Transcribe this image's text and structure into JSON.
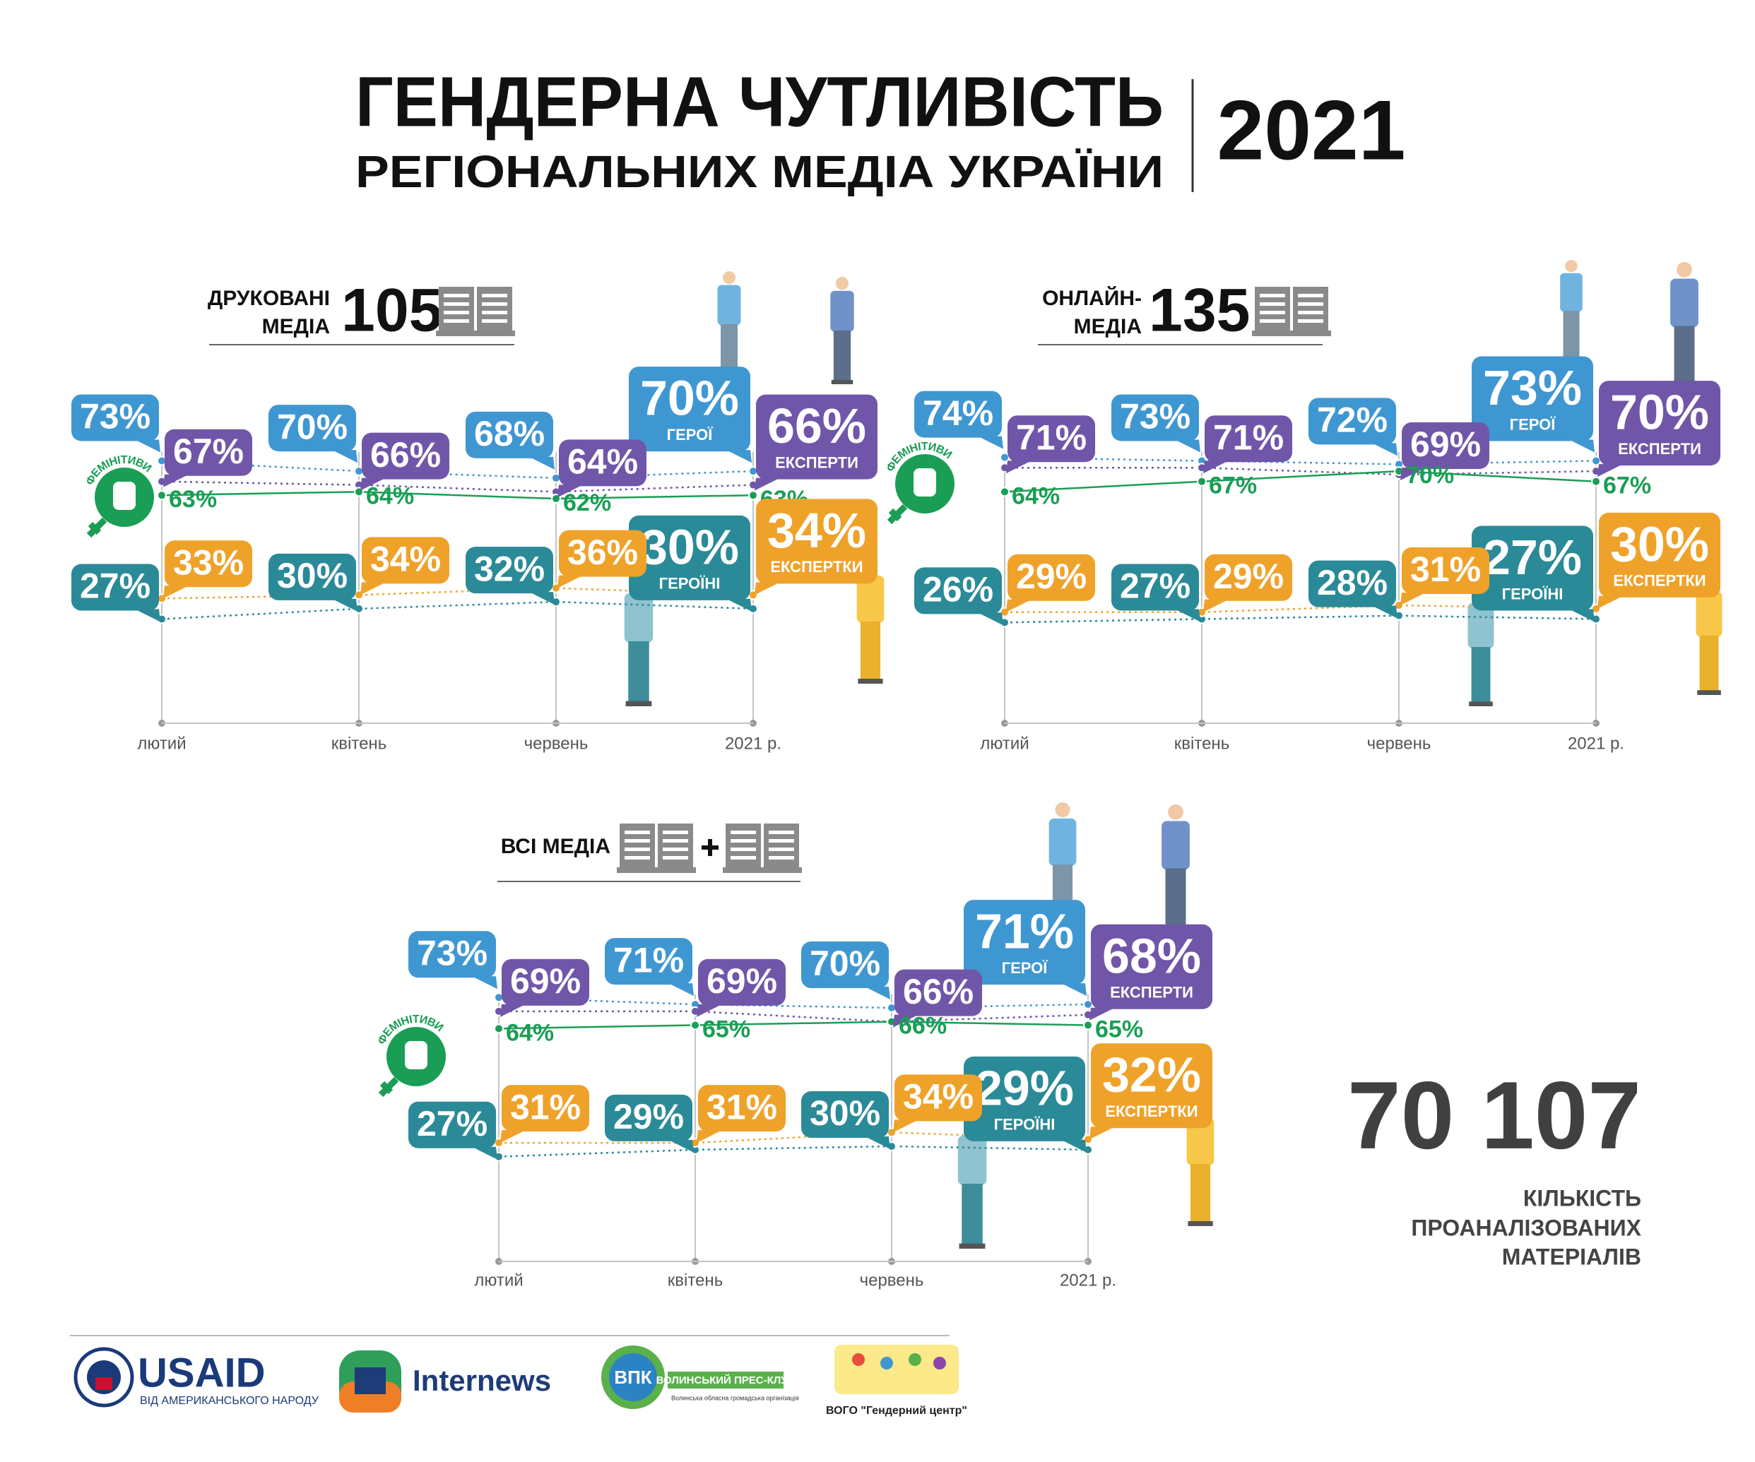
{
  "header": {
    "title_line1": "ГЕНДЕРНА ЧУТЛИВІСТЬ",
    "title_line2": "РЕГІОНАЛЬНИХ МЕДІА УКРАЇНИ",
    "year": "2021"
  },
  "chart_data": [
    {
      "type": "line",
      "title_lines": [
        "ДРУКОВАНІ",
        "МЕДІА"
      ],
      "count": 105,
      "categories": [
        "лютий",
        "квітень",
        "червень",
        "2021 р."
      ],
      "ylim": [
        0,
        100
      ],
      "series": [
        {
          "name": "ГЕРОЇ",
          "color": "#3f97d2",
          "values": [
            73,
            70,
            68,
            70
          ],
          "value_labels": [
            "73%",
            "70%",
            "68%",
            "70%"
          ]
        },
        {
          "name": "ЕКСПЕРТИ",
          "color": "#7056a8",
          "values": [
            67,
            66,
            64,
            66
          ],
          "value_labels": [
            "67%",
            "66%",
            "64%",
            "66%"
          ]
        },
        {
          "name": "ФЕМІНІТИВИ",
          "color": "#1a9e55",
          "values": [
            63,
            64,
            62,
            63
          ],
          "value_labels": [
            "63%",
            "64%",
            "62%",
            "63%"
          ]
        },
        {
          "name": "ГЕРОЇНІ",
          "color": "#2b8a98",
          "values": [
            27,
            30,
            32,
            30
          ],
          "value_labels": [
            "27%",
            "30%",
            "32%",
            "30%"
          ]
        },
        {
          "name": "ЕКСПЕРТКИ",
          "color": "#efa22a",
          "values": [
            33,
            34,
            36,
            34
          ],
          "value_labels": [
            "33%",
            "34%",
            "36%",
            "34%"
          ]
        }
      ]
    },
    {
      "type": "line",
      "title_lines": [
        "ОНЛАЙН-",
        "МЕДІА"
      ],
      "count": 135,
      "categories": [
        "лютий",
        "квітень",
        "червень",
        "2021 р."
      ],
      "ylim": [
        0,
        100
      ],
      "series": [
        {
          "name": "ГЕРОЇ",
          "color": "#3f97d2",
          "values": [
            74,
            73,
            72,
            73
          ],
          "value_labels": [
            "74%",
            "73%",
            "72%",
            "73%"
          ]
        },
        {
          "name": "ЕКСПЕРТИ",
          "color": "#7056a8",
          "values": [
            71,
            71,
            69,
            70
          ],
          "value_labels": [
            "71%",
            "71%",
            "69%",
            "70%"
          ]
        },
        {
          "name": "ФЕМІНІТИВИ",
          "color": "#1a9e55",
          "values": [
            64,
            67,
            70,
            67
          ],
          "value_labels": [
            "64%",
            "67%",
            "70%",
            "67%"
          ]
        },
        {
          "name": "ГЕРОЇНІ",
          "color": "#2b8a98",
          "values": [
            26,
            27,
            28,
            27
          ],
          "value_labels": [
            "26%",
            "27%",
            "28%",
            "27%"
          ]
        },
        {
          "name": "ЕКСПЕРТКИ",
          "color": "#efa22a",
          "values": [
            29,
            29,
            31,
            30
          ],
          "value_labels": [
            "29%",
            "29%",
            "31%",
            "30%"
          ]
        }
      ]
    },
    {
      "type": "line",
      "title_lines": [
        "ВСІ МЕДІА"
      ],
      "categories": [
        "лютий",
        "квітень",
        "червень",
        "2021 р."
      ],
      "ylim": [
        0,
        100
      ],
      "series": [
        {
          "name": "ГЕРОЇ",
          "color": "#3f97d2",
          "values": [
            73,
            71,
            70,
            71
          ],
          "value_labels": [
            "73%",
            "71%",
            "70%",
            "71%"
          ]
        },
        {
          "name": "ЕКСПЕРТИ",
          "color": "#7056a8",
          "values": [
            69,
            69,
            66,
            68
          ],
          "value_labels": [
            "69%",
            "69%",
            "66%",
            "68%"
          ]
        },
        {
          "name": "ФЕМІНІТИВИ",
          "color": "#1a9e55",
          "values": [
            64,
            65,
            66,
            65
          ],
          "value_labels": [
            "64%",
            "65%",
            "66%",
            "65%"
          ]
        },
        {
          "name": "ГЕРОЇНІ",
          "color": "#2b8a98",
          "values": [
            27,
            29,
            30,
            29
          ],
          "value_labels": [
            "27%",
            "29%",
            "30%",
            "29%"
          ]
        },
        {
          "name": "ЕКСПЕРТКИ",
          "color": "#efa22a",
          "values": [
            31,
            31,
            34,
            32
          ],
          "value_labels": [
            "31%",
            "31%",
            "34%",
            "32%"
          ]
        }
      ]
    }
  ],
  "total": {
    "value": "70 107",
    "label_lines": [
      "КІЛЬКІСТЬ",
      "ПРОАНАЛІЗОВАНИХ",
      "МАТЕРІАЛІВ"
    ]
  },
  "footer": {
    "usaid": "USAID",
    "usaid_tagline": "ВІД АМЕРИКАНСЬКОГО НАРОДУ",
    "internews": "Internews",
    "vpk": "ВПК",
    "vpk_name": "ВОЛИНСЬКИЙ ПРЕС-КЛУБ",
    "vpk_sub": "Волинська обласна громадська організація",
    "gender_center": "ВОГО \"Гендерний центр\""
  }
}
